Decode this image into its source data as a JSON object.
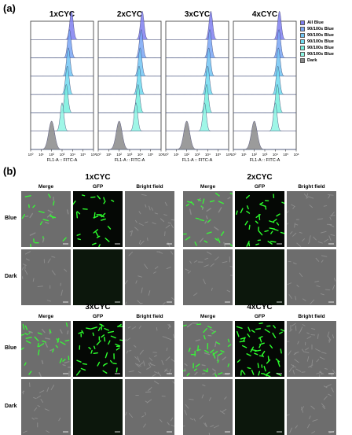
{
  "panel_a": {
    "letter": "(a)",
    "titles": [
      "1xCYC",
      "2xCYC",
      "3xCYC",
      "4xCYC"
    ],
    "xlabel": "FL1-A :: FITC-A",
    "xticks": [
      "10⁰",
      "10¹",
      "10²",
      "10³",
      "10⁴",
      "10⁵",
      "10⁶"
    ],
    "legend": [
      {
        "label": "All Blue",
        "color": "#7f7ff0"
      },
      {
        "label": "90/100s Blue",
        "color": "#79a6f4"
      },
      {
        "label": "90/100s Blue",
        "color": "#72c6f3"
      },
      {
        "label": "90/100s Blue",
        "color": "#6fdaee"
      },
      {
        "label": "90/100s Blue",
        "color": "#76eedd"
      },
      {
        "label": "90/100s Blue",
        "color": "#8ef5e3"
      },
      {
        "label": "Dark",
        "color": "#8a8a8a"
      }
    ]
  },
  "chart_data": {
    "type": "area",
    "x_scale": "log",
    "xlim": [
      1,
      1000000
    ],
    "groups": [
      "1xCYC",
      "2xCYC",
      "3xCYC",
      "4xCYC"
    ],
    "xlabel": "FL1-A :: FITC-A",
    "series_peaks_log10": {
      "1xCYC": [
        3.9,
        3.7,
        3.6,
        3.5,
        3.4,
        3.0,
        2.0
      ],
      "2xCYC": [
        4.2,
        4.1,
        4.0,
        3.9,
        3.8,
        3.6,
        2.0
      ],
      "3xCYC": [
        4.3,
        4.2,
        4.1,
        4.0,
        3.9,
        3.7,
        2.0
      ],
      "4xCYC": [
        4.4,
        4.35,
        4.3,
        4.25,
        4.2,
        4.0,
        2.0
      ]
    }
  },
  "panel_b": {
    "letter": "(b)",
    "groups": [
      {
        "title": "1xCYC"
      },
      {
        "title": "2xCYC"
      },
      {
        "title": "3xCYC"
      },
      {
        "title": "4xCYC"
      }
    ],
    "columns": [
      "Merge",
      "GFP",
      "Bright field"
    ],
    "rows": [
      "Blue",
      "Dark"
    ]
  }
}
